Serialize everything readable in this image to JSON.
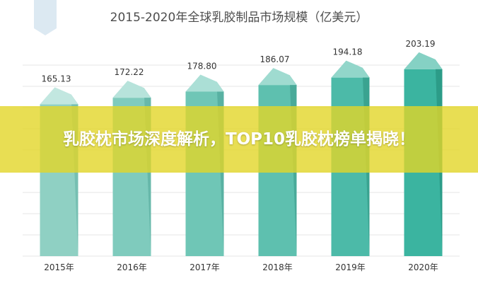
{
  "banner": {
    "headline": "乳胶枕市场深度解析，TOP10乳胶枕榜单揭晓！"
  },
  "chart_data": {
    "type": "bar",
    "title": "2015-2020年全球乳胶制品市场规模（亿美元）",
    "categories": [
      "2015年",
      "2016年",
      "2017年",
      "2018年",
      "2019年",
      "2020年"
    ],
    "values": [
      165.13,
      172.22,
      178.8,
      186.07,
      194.18,
      203.19
    ],
    "value_labels": [
      "165.13",
      "172.22",
      "178.80",
      "186.07",
      "194.18",
      "203.19"
    ],
    "xlabel": "",
    "ylabel": "",
    "ylim": [
      0,
      210
    ],
    "grid": true,
    "legend": "none",
    "colors": {
      "bar_front": [
        "#8fd0c3",
        "#7fcbbd",
        "#6fc6b6",
        "#5ec0af",
        "#4cbaa8",
        "#3bb4a0"
      ],
      "bar_top": [
        "#c2e7e0",
        "#b7e3db",
        "#abdfd6",
        "#9fdbd0",
        "#92d6ca",
        "#85d1c4"
      ],
      "bar_side": [
        "#76bfb2",
        "#67b8aa",
        "#58b1a2",
        "#49aa99",
        "#3aa390",
        "#2c9c88"
      ],
      "gridline": "#e6e6e6",
      "banner": "#e2d628"
    }
  }
}
